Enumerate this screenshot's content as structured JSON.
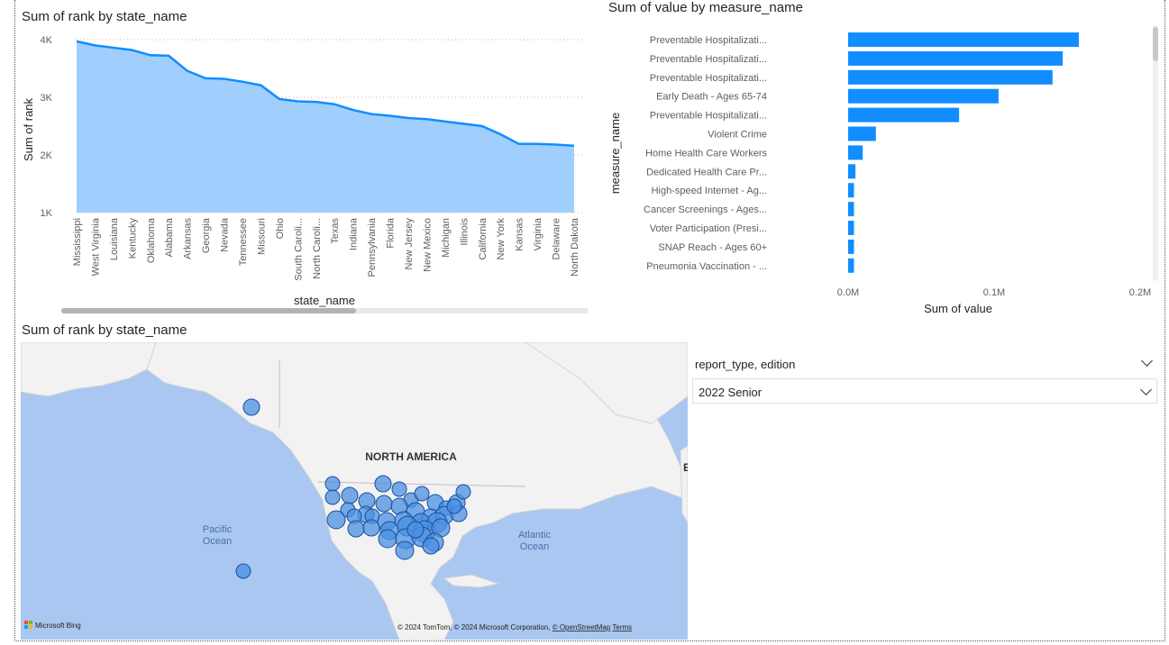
{
  "area_chart": {
    "title": "Sum of rank by state_name",
    "xlabel": "state_name",
    "ylabel": "Sum of rank"
  },
  "bar_chart": {
    "title": "Sum of value by measure_name",
    "xlabel": "Sum of value",
    "ylabel": "measure_name"
  },
  "map": {
    "title": "Sum of rank by state_name",
    "labels": {
      "north_america": "NORTH AMERICA",
      "pacific_1": "Pacific",
      "pacific_2": "Ocean",
      "atlantic_1": "Atlantic",
      "atlantic_2": "Ocean"
    },
    "bing_logo": "Microsoft Bing",
    "attribution": "© 2024 TomTom, © 2024 Microsoft Corporation, ",
    "attribution_link": "© OpenStreetMap",
    "terms": "Terms",
    "bubble_color": "#4a90e2"
  },
  "slicer": {
    "title": "report_type, edition",
    "selected": "2022 Senior"
  },
  "colors": {
    "accent": "#118dff",
    "area_fill": "#a0cffd",
    "water": "#a9c7f0",
    "land": "#f2f2f2"
  },
  "chart_data": [
    {
      "type": "area",
      "title": "Sum of rank by state_name",
      "xlabel": "state_name",
      "ylabel": "Sum of rank",
      "ylim": [
        1000,
        4000
      ],
      "yticks": [
        "1K",
        "2K",
        "3K",
        "4K"
      ],
      "grid": true,
      "categories": [
        "Mississippi",
        "West Virginia",
        "Louisiana",
        "Kentucky",
        "Oklahoma",
        "Alabama",
        "Arkansas",
        "Georgia",
        "Nevada",
        "Tennessee",
        "Missouri",
        "Ohio",
        "South Caroli...",
        "North Caroli...",
        "Texas",
        "Indiana",
        "Pennsylvania",
        "Florida",
        "New Jersey",
        "New Mexico",
        "Michigan",
        "Illinois",
        "California",
        "New York",
        "Kansas",
        "Virginia",
        "Delaware",
        "North Dakota"
      ],
      "values": [
        3970,
        3900,
        3860,
        3820,
        3730,
        3720,
        3460,
        3330,
        3320,
        3270,
        3210,
        2970,
        2930,
        2920,
        2880,
        2780,
        2710,
        2680,
        2640,
        2620,
        2580,
        2540,
        2500,
        2360,
        2190,
        2190,
        2180,
        2160
      ]
    },
    {
      "type": "bar",
      "orientation": "horizontal",
      "title": "Sum of value by measure_name",
      "xlabel": "Sum of value",
      "ylabel": "measure_name",
      "xlim": [
        0,
        0.2
      ],
      "xticks": [
        "0.0M",
        "0.1M",
        "0.2M"
      ],
      "categories": [
        "Preventable Hospitalizati...",
        "Preventable Hospitalizati...",
        "Preventable Hospitalizati...",
        "Early Death - Ages 65-74",
        "Preventable Hospitalizati...",
        "Violent Crime",
        "Home Health Care Workers",
        "Dedicated Health Care Pr...",
        "High-speed Internet - Ag...",
        "Cancer Screenings - Ages...",
        "Voter Participation (Presi...",
        "SNAP Reach - Ages 60+",
        "Pneumonia Vaccination - ..."
      ],
      "values": [
        0.158,
        0.147,
        0.14,
        0.103,
        0.076,
        0.019,
        0.01,
        0.005,
        0.004,
        0.004,
        0.004,
        0.004,
        0.004
      ],
      "unit": "M"
    }
  ]
}
